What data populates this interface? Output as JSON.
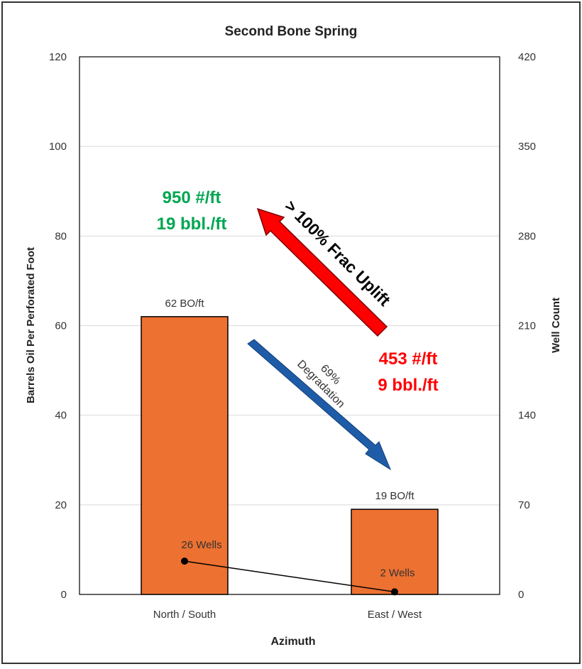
{
  "chart_data": {
    "type": "bar",
    "title": "Second Bone Spring",
    "xlabel": "Azimuth",
    "ylabel": "Barrels Oil Per Perforated Foot",
    "y2label": "Well Count",
    "categories": [
      "North / South",
      "East / West"
    ],
    "ylim": [
      0,
      120
    ],
    "yticks": [
      "0",
      "20",
      "40",
      "60",
      "80",
      "100",
      "120"
    ],
    "y2lim": [
      0,
      420
    ],
    "y2ticks": [
      "0",
      "70",
      "140",
      "210",
      "280",
      "350",
      "420"
    ],
    "grid": true,
    "series": [
      {
        "type": "bar",
        "values": [
          62,
          19
        ],
        "label_numbers": [
          "62",
          "19"
        ],
        "label_unit": "BO/ft",
        "color": "#ed7131"
      },
      {
        "type": "line",
        "axis": "secondary",
        "values": [
          26,
          2
        ],
        "label_numbers": [
          "26",
          "2"
        ],
        "label_unit": "Wells",
        "color": "#000000"
      }
    ],
    "annotations": {
      "uplift": {
        "text": "> 100% Frac Uplift",
        "color": "#ff0000"
      },
      "degradation": {
        "line1": "69%",
        "line2": "Degradation",
        "color": "#1f5ca8"
      },
      "green_note": {
        "line1": "950 #/ft",
        "line2": "19 bbl./ft",
        "color": "#00a651"
      },
      "red_note": {
        "line1": "453 #/ft",
        "line2": "9 bbl./ft",
        "color": "#ff0000"
      }
    }
  }
}
